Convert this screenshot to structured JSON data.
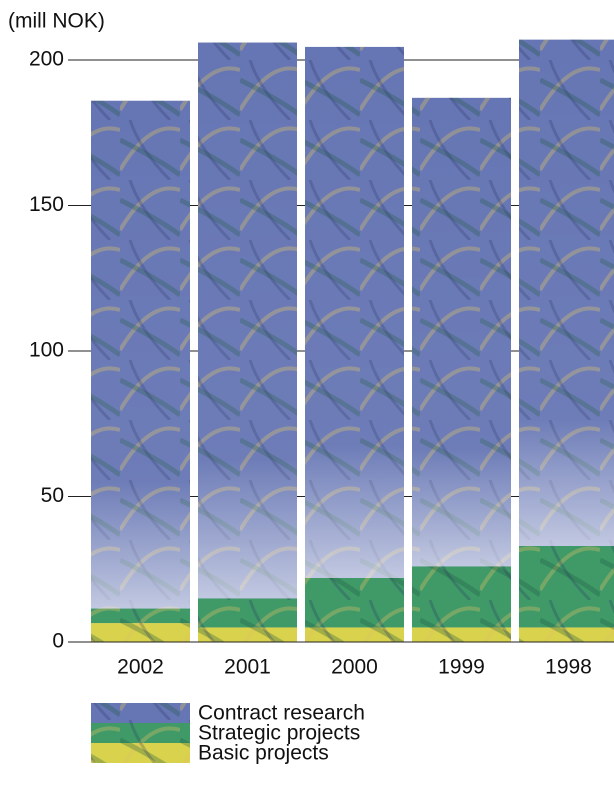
{
  "chart_data": {
    "type": "stacked_bar",
    "y_axis_label": "(mill NOK)",
    "categories": [
      "2002",
      "2001",
      "2000",
      "1999",
      "1998"
    ],
    "series": [
      {
        "name": "Contract research",
        "color": "#6676b4",
        "values": [
          174.5,
          191,
          182.5,
          161,
          174
        ]
      },
      {
        "name": "Strategic projects",
        "color": "#3f9a68",
        "values": [
          5,
          10,
          17,
          21,
          28
        ]
      },
      {
        "name": "Basic projects",
        "color": "#d9d24c",
        "values": [
          6.5,
          5,
          5,
          5,
          5
        ]
      }
    ],
    "ylim": [
      0,
      200
    ],
    "yticks": [
      0,
      50,
      100,
      150,
      200
    ],
    "grid": true
  }
}
